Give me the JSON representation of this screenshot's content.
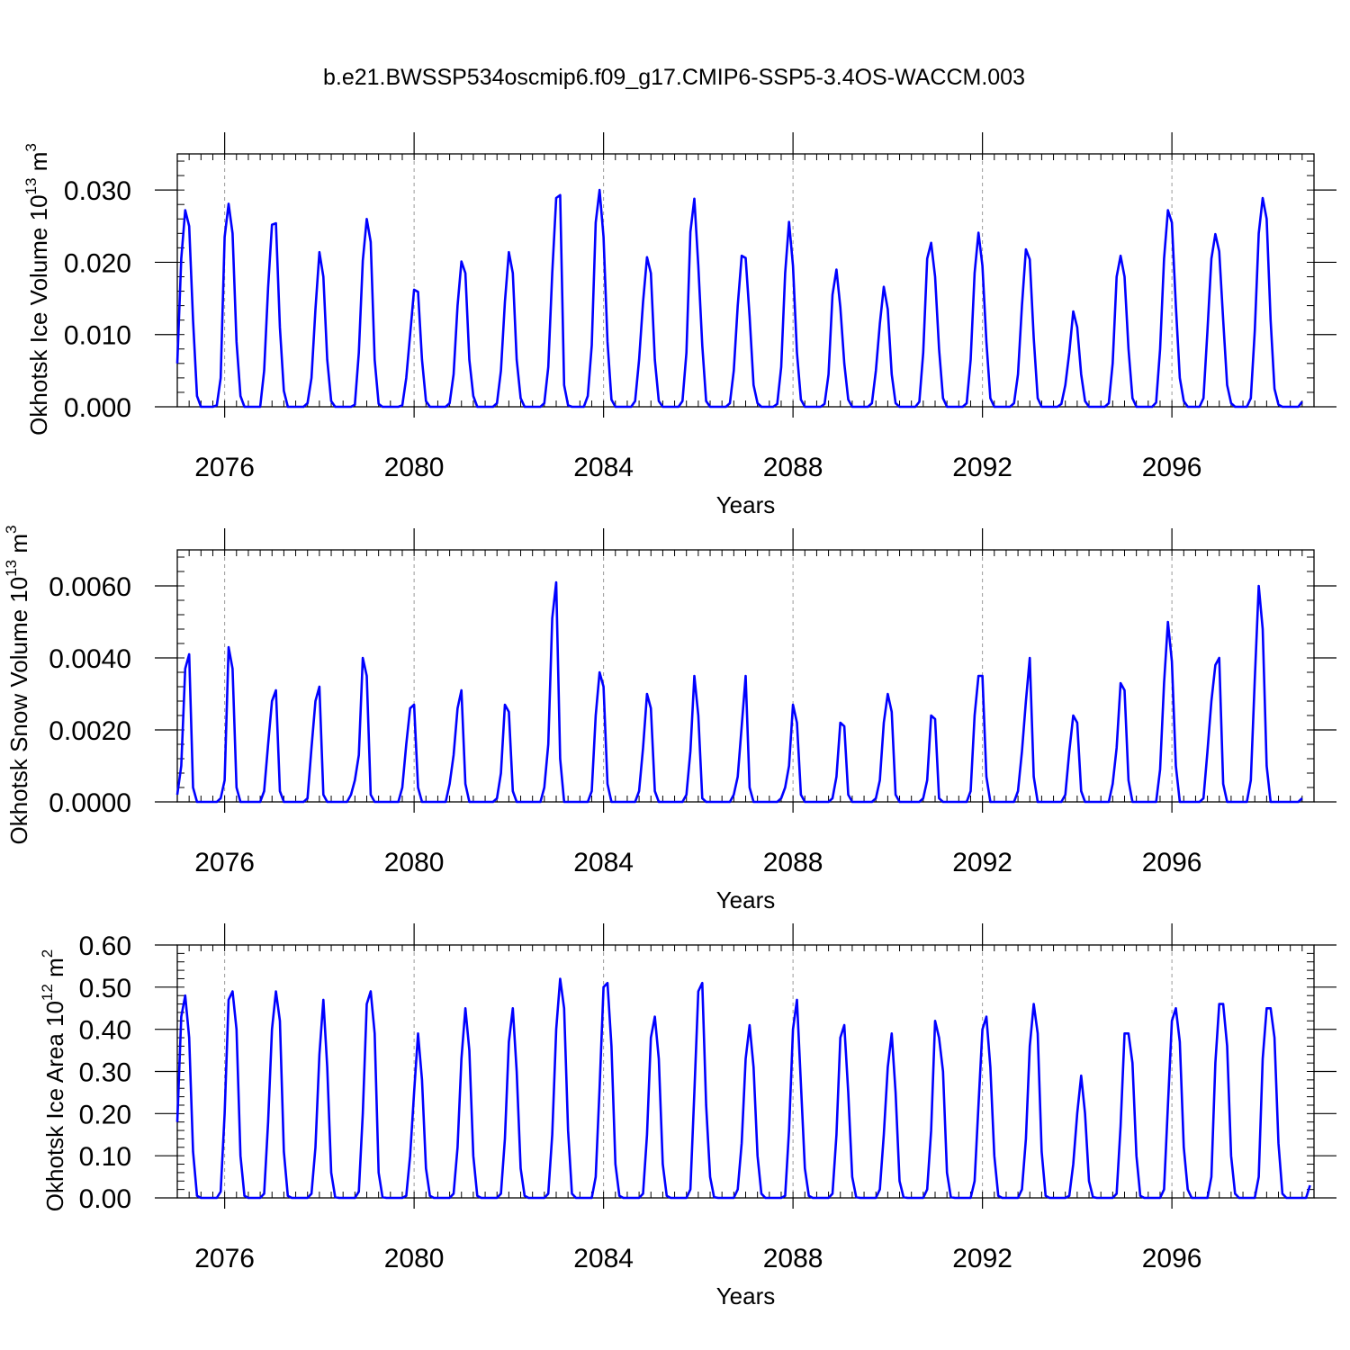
{
  "figure": {
    "title": "b.e21.BWSSP534oscmip6.f09_g17.CMIP6-SSP5-3.4OS-WACCM.003",
    "line_color": "#0000ff"
  },
  "chart_data": [
    {
      "type": "line",
      "title": "b.e21.BWSSP534oscmip6.f09_g17.CMIP6-SSP5-3.4OS-WACCM.003",
      "xlabel": "Years",
      "ylabel": "Okhotsk Ice Volume 10^13 m^3",
      "ylabel_parts": [
        "Okhotsk Ice Volume 10",
        "13",
        " m",
        "3"
      ],
      "xlim": [
        2075,
        2099
      ],
      "ylim": [
        0.0,
        0.035
      ],
      "xticks": [
        2076,
        2080,
        2084,
        2088,
        2092,
        2096
      ],
      "xtick_labels": [
        "2076",
        "2080",
        "2084",
        "2088",
        "2092",
        "2096"
      ],
      "yticks": [
        0.0,
        0.01,
        0.02,
        0.03
      ],
      "ytick_labels": [
        "0.000",
        "0.010",
        "0.020",
        "0.030"
      ],
      "grid": "vertical dashed at major x ticks",
      "series": [
        {
          "color": "#0000ff",
          "x_start": 2075.0,
          "x_step": 0.0833333,
          "values": [
            0.006,
            0.0205,
            0.0272,
            0.025,
            0.012,
            0.0015,
            0,
            0,
            0,
            0,
            0.0002,
            0.004,
            0.0235,
            0.0281,
            0.024,
            0.009,
            0.0015,
            0,
            0,
            0,
            0,
            0,
            0.005,
            0.0165,
            0.0252,
            0.0254,
            0.011,
            0.0022,
            0,
            0,
            0,
            0,
            0,
            0.0005,
            0.004,
            0.0135,
            0.0214,
            0.018,
            0.0065,
            0.0008,
            0,
            0,
            0,
            0,
            0,
            0.0003,
            0.0075,
            0.0202,
            0.026,
            0.0228,
            0.0065,
            0.0004,
            0,
            0,
            0,
            0,
            0,
            0.0002,
            0.004,
            0.01,
            0.0162,
            0.0159,
            0.0065,
            0.0008,
            0,
            0,
            0,
            0,
            0,
            0.0005,
            0.0045,
            0.014,
            0.0201,
            0.0185,
            0.0065,
            0.0015,
            0,
            0,
            0,
            0,
            0,
            0.0005,
            0.005,
            0.0145,
            0.0214,
            0.0185,
            0.0065,
            0.0012,
            0,
            0,
            0,
            0,
            0,
            0.0005,
            0.0055,
            0.0185,
            0.0289,
            0.0293,
            0.003,
            0.0002,
            0,
            0,
            0,
            0,
            0.0015,
            0.0085,
            0.0255,
            0.03,
            0.0235,
            0.009,
            0.001,
            0,
            0,
            0,
            0,
            0,
            0.0008,
            0.0065,
            0.0145,
            0.0207,
            0.0185,
            0.0065,
            0.0008,
            0,
            0,
            0,
            0,
            0,
            0.0008,
            0.0075,
            0.0242,
            0.0288,
            0.0195,
            0.0085,
            0.0008,
            0,
            0,
            0,
            0,
            0,
            0.0005,
            0.005,
            0.014,
            0.0209,
            0.0206,
            0.0125,
            0.003,
            0.0005,
            0,
            0,
            0,
            0,
            0.0004,
            0.0055,
            0.0185,
            0.0256,
            0.0195,
            0.0075,
            0.001,
            0,
            0,
            0,
            0,
            0,
            0.0004,
            0.0045,
            0.0155,
            0.019,
            0.0138,
            0.006,
            0.001,
            0,
            0,
            0,
            0,
            0,
            0.0005,
            0.005,
            0.0115,
            0.0166,
            0.0135,
            0.0045,
            0.0005,
            0,
            0,
            0,
            0,
            0,
            0.0007,
            0.0075,
            0.0205,
            0.0227,
            0.018,
            0.008,
            0.0012,
            0,
            0,
            0,
            0,
            0,
            0.0005,
            0.0065,
            0.0185,
            0.0241,
            0.0195,
            0.009,
            0.0012,
            0,
            0,
            0,
            0,
            0,
            0.0005,
            0.0045,
            0.014,
            0.0218,
            0.0204,
            0.0095,
            0.0012,
            0,
            0,
            0,
            0,
            0,
            0.0004,
            0.003,
            0.0075,
            0.0132,
            0.011,
            0.0045,
            0.0008,
            0,
            0,
            0,
            0,
            0,
            0.0005,
            0.006,
            0.018,
            0.0209,
            0.018,
            0.008,
            0.0012,
            0,
            0,
            0,
            0,
            0,
            0.0006,
            0.008,
            0.0205,
            0.0272,
            0.0255,
            0.014,
            0.004,
            0.0008,
            0,
            0,
            0,
            0,
            0.0012,
            0.0105,
            0.0205,
            0.0239,
            0.0215,
            0.012,
            0.003,
            0.0005,
            0,
            0,
            0,
            0,
            0.0012,
            0.0105,
            0.024,
            0.0289,
            0.026,
            0.012,
            0.0025,
            0.0003,
            0,
            0,
            0,
            0,
            0,
            0.0007
          ]
        }
      ]
    },
    {
      "type": "line",
      "xlabel": "Years",
      "ylabel": "Okhotsk Snow Volume 10^13 m^3",
      "ylabel_parts": [
        "Okhotsk Snow Volume 10",
        "13",
        " m",
        "3"
      ],
      "xlim": [
        2075,
        2099
      ],
      "ylim": [
        0.0,
        0.007
      ],
      "xticks": [
        2076,
        2080,
        2084,
        2088,
        2092,
        2096
      ],
      "xtick_labels": [
        "2076",
        "2080",
        "2084",
        "2088",
        "2092",
        "2096"
      ],
      "yticks": [
        0.0,
        0.002,
        0.004,
        0.006
      ],
      "ytick_labels": [
        "0.0000",
        "0.0020",
        "0.0040",
        "0.0060"
      ],
      "grid": "vertical dashed at major x ticks",
      "series": [
        {
          "color": "#0000ff",
          "x_start": 2075.0,
          "x_step": 0.0833333,
          "values": [
            0.0002,
            0.001,
            0.0037,
            0.0041,
            0.0004,
            0,
            0,
            0,
            0,
            0,
            0,
            0.0001,
            0.0006,
            0.0043,
            0.0037,
            0.0004,
            0,
            0,
            0,
            0,
            0,
            0,
            0.0003,
            0.0016,
            0.0028,
            0.0031,
            0.0003,
            0,
            0,
            0,
            0,
            0,
            0,
            0.0001,
            0.0015,
            0.0028,
            0.0032,
            0.0002,
            0,
            0,
            0,
            0,
            0,
            0,
            0.0002,
            0.0006,
            0.0013,
            0.004,
            0.0035,
            0.0002,
            0,
            0,
            0,
            0,
            0,
            0,
            0,
            0.0004,
            0.0016,
            0.0026,
            0.0027,
            0.0004,
            0,
            0,
            0,
            0,
            0,
            0,
            0,
            0.0005,
            0.0013,
            0.0026,
            0.0031,
            0.0005,
            0,
            0,
            0,
            0,
            0,
            0,
            0,
            0.0001,
            0.0008,
            0.0027,
            0.0025,
            0.0003,
            0,
            0,
            0,
            0,
            0,
            0,
            0,
            0.0004,
            0.0016,
            0.0051,
            0.0061,
            0.0012,
            0,
            0,
            0,
            0,
            0,
            0,
            0,
            0.0003,
            0.0024,
            0.0036,
            0.0032,
            0.0005,
            0,
            0,
            0,
            0,
            0,
            0,
            0,
            0.0003,
            0.0015,
            0.003,
            0.0026,
            0.0003,
            0,
            0,
            0,
            0,
            0,
            0,
            0,
            0.0002,
            0.0014,
            0.0035,
            0.0024,
            0.0001,
            0,
            0,
            0,
            0,
            0,
            0,
            0,
            0.0002,
            0.0007,
            0.0021,
            0.0035,
            0.0004,
            0,
            0,
            0,
            0,
            0,
            0,
            0,
            0.0001,
            0.0004,
            0.001,
            0.0027,
            0.0022,
            0.0002,
            0,
            0,
            0,
            0,
            0,
            0,
            0,
            0.0001,
            0.0007,
            0.0022,
            0.0021,
            0.0002,
            0,
            0,
            0,
            0,
            0,
            0,
            0.0001,
            0.0006,
            0.0022,
            0.003,
            0.0025,
            0.0002,
            0,
            0,
            0,
            0,
            0,
            0,
            0.0001,
            0.0006,
            0.0024,
            0.0023,
            0.0001,
            0,
            0,
            0,
            0,
            0,
            0,
            0,
            0.0003,
            0.0024,
            0.0035,
            0.0035,
            0.0007,
            0,
            0,
            0,
            0,
            0,
            0,
            0,
            0.0003,
            0.0014,
            0.0028,
            0.004,
            0.0007,
            0,
            0,
            0,
            0,
            0,
            0,
            0,
            0.0002,
            0.0014,
            0.0024,
            0.0022,
            0.0003,
            0,
            0,
            0,
            0,
            0,
            0,
            0,
            0.0005,
            0.0015,
            0.0033,
            0.0031,
            0.0006,
            0,
            0,
            0,
            0,
            0,
            0,
            0,
            0.0009,
            0.0033,
            0.005,
            0.0039,
            0.001,
            0,
            0,
            0,
            0,
            0,
            0,
            0.0001,
            0.0014,
            0.0028,
            0.0038,
            0.004,
            0.0005,
            0,
            0,
            0,
            0,
            0,
            0,
            0.0006,
            0.0034,
            0.006,
            0.0048,
            0.001,
            0,
            0,
            0,
            0,
            0,
            0,
            0,
            0,
            0.0001
          ]
        }
      ]
    },
    {
      "type": "line",
      "xlabel": "Years",
      "ylabel": "Okhotsk Ice Area 10^12 m^2",
      "ylabel_parts": [
        "Okhotsk Ice Area 10",
        "12",
        " m",
        "2"
      ],
      "xlim": [
        2075,
        2099
      ],
      "ylim": [
        0.0,
        0.6
      ],
      "xticks": [
        2076,
        2080,
        2084,
        2088,
        2092,
        2096
      ],
      "xtick_labels": [
        "2076",
        "2080",
        "2084",
        "2088",
        "2092",
        "2096"
      ],
      "yticks": [
        0.0,
        0.1,
        0.2,
        0.3,
        0.4,
        0.5,
        0.6
      ],
      "ytick_labels": [
        "0.00",
        "0.10",
        "0.20",
        "0.30",
        "0.40",
        "0.50",
        "0.60"
      ],
      "grid": "vertical dashed at major x ticks",
      "series": [
        {
          "color": "#0000ff",
          "x_start": 2075.0,
          "x_step": 0.0833333,
          "values": [
            0.18,
            0.43,
            0.48,
            0.38,
            0.11,
            0.005,
            0,
            0,
            0,
            0,
            0,
            0.015,
            0.2,
            0.47,
            0.49,
            0.4,
            0.1,
            0.005,
            0,
            0,
            0,
            0,
            0.01,
            0.18,
            0.4,
            0.49,
            0.42,
            0.11,
            0.005,
            0,
            0,
            0,
            0,
            0,
            0.01,
            0.12,
            0.34,
            0.47,
            0.31,
            0.06,
            0.002,
            0,
            0,
            0,
            0,
            0,
            0.015,
            0.2,
            0.46,
            0.49,
            0.39,
            0.06,
            0.002,
            0,
            0,
            0,
            0,
            0,
            0.005,
            0.1,
            0.25,
            0.39,
            0.28,
            0.07,
            0.005,
            0,
            0,
            0,
            0,
            0,
            0.01,
            0.12,
            0.33,
            0.45,
            0.35,
            0.1,
            0.005,
            0,
            0,
            0,
            0,
            0,
            0.01,
            0.14,
            0.37,
            0.45,
            0.3,
            0.07,
            0.005,
            0,
            0,
            0,
            0,
            0,
            0.01,
            0.15,
            0.4,
            0.52,
            0.45,
            0.16,
            0.01,
            0,
            0,
            0,
            0,
            0,
            0.05,
            0.26,
            0.5,
            0.51,
            0.36,
            0.08,
            0.005,
            0,
            0,
            0,
            0,
            0,
            0.01,
            0.15,
            0.38,
            0.43,
            0.33,
            0.08,
            0.005,
            0,
            0,
            0,
            0,
            0,
            0.02,
            0.25,
            0.49,
            0.51,
            0.22,
            0.05,
            0.002,
            0,
            0,
            0,
            0,
            0,
            0.02,
            0.13,
            0.33,
            0.41,
            0.31,
            0.1,
            0.01,
            0,
            0,
            0,
            0,
            0,
            0.005,
            0.16,
            0.4,
            0.47,
            0.27,
            0.07,
            0.005,
            0,
            0,
            0,
            0,
            0,
            0.01,
            0.15,
            0.38,
            0.41,
            0.25,
            0.05,
            0.002,
            0,
            0,
            0,
            0,
            0,
            0.02,
            0.15,
            0.31,
            0.39,
            0.25,
            0.04,
            0.002,
            0,
            0,
            0,
            0,
            0,
            0.02,
            0.16,
            0.42,
            0.38,
            0.3,
            0.06,
            0.002,
            0,
            0,
            0,
            0,
            0,
            0.04,
            0.22,
            0.4,
            0.43,
            0.31,
            0.1,
            0.005,
            0,
            0,
            0,
            0,
            0,
            0.02,
            0.14,
            0.36,
            0.46,
            0.39,
            0.11,
            0.005,
            0,
            0,
            0,
            0,
            0,
            0.005,
            0.08,
            0.2,
            0.29,
            0.2,
            0.04,
            0.002,
            0,
            0,
            0,
            0,
            0,
            0.01,
            0.17,
            0.39,
            0.39,
            0.32,
            0.1,
            0.005,
            0,
            0,
            0,
            0,
            0,
            0.02,
            0.22,
            0.42,
            0.45,
            0.37,
            0.12,
            0.02,
            0,
            0,
            0,
            0,
            0,
            0.05,
            0.32,
            0.46,
            0.46,
            0.36,
            0.1,
            0.01,
            0,
            0,
            0,
            0,
            0,
            0.05,
            0.33,
            0.45,
            0.45,
            0.38,
            0.13,
            0.01,
            0,
            0,
            0,
            0,
            0,
            0,
            0.03
          ]
        }
      ]
    }
  ]
}
